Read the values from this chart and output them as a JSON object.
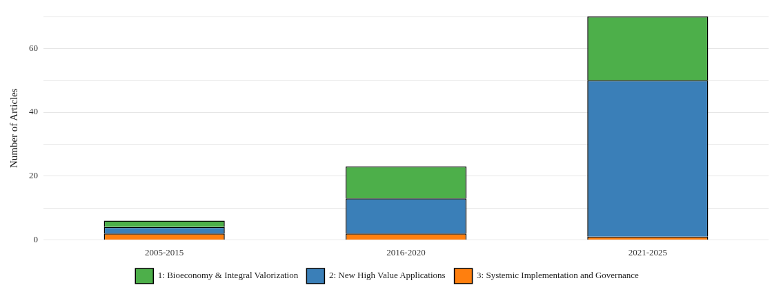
{
  "chart_data": {
    "type": "bar",
    "stacked": true,
    "ylabel": "Number of Articles",
    "categories": [
      "2005-2015",
      "2016-2020",
      "2021-2025"
    ],
    "series": [
      {
        "name": "3: Systemic Implementation and Governance",
        "color": "#ff7f0e",
        "values": [
          2,
          2,
          1
        ]
      },
      {
        "name": "2: New High Value Applications",
        "color": "#3a7fb8",
        "values": [
          2,
          11,
          49
        ]
      },
      {
        "name": "1: Bioeconomy & Integral Valorization",
        "color": "#4daf4a",
        "values": [
          2,
          10,
          20
        ]
      }
    ],
    "ylim": [
      0,
      70
    ],
    "yticks": [
      0,
      {
        "value": 10,
        "label": null
      },
      20,
      {
        "value": 30,
        "label": null
      },
      40,
      {
        "value": 50,
        "label": null
      },
      60,
      {
        "value": 70,
        "label": null
      }
    ],
    "grid": "y",
    "legend": "bottom"
  }
}
